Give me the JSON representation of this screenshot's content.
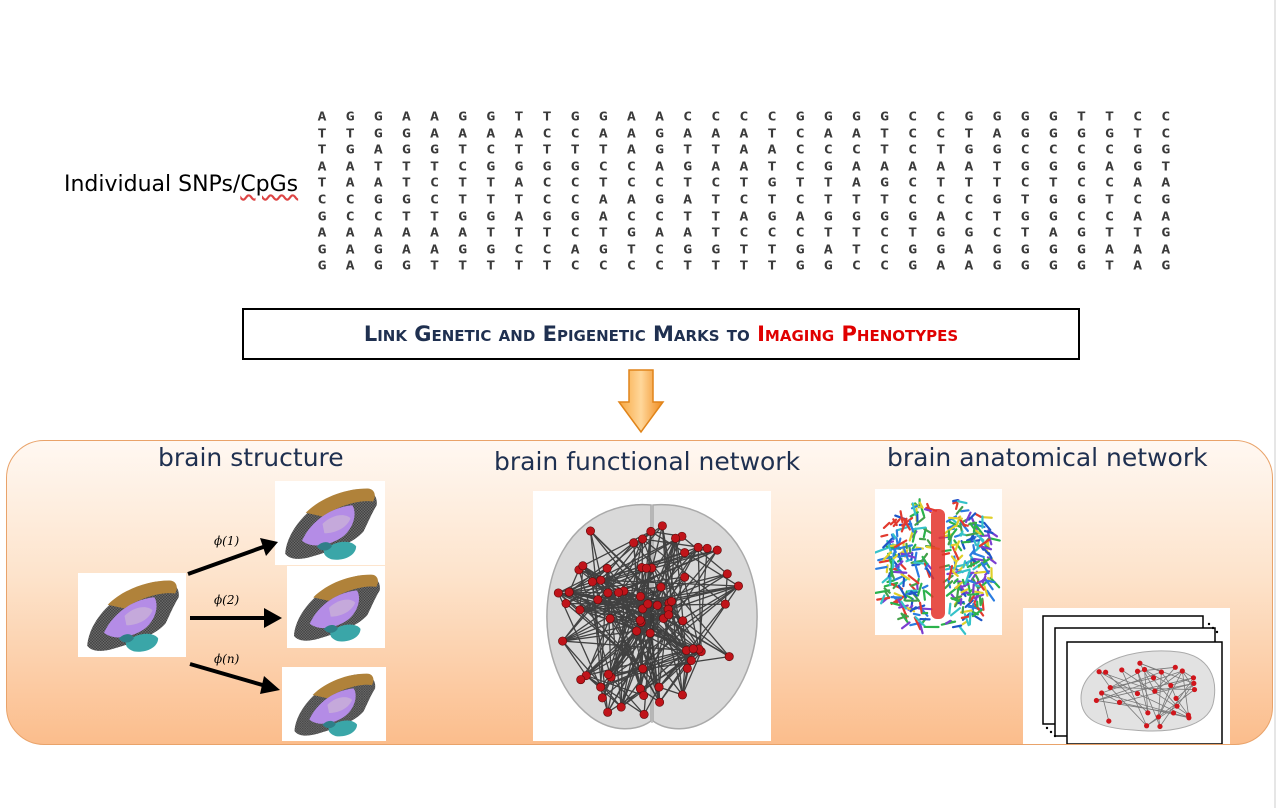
{
  "snp_label": {
    "main": "Individual SNPs/",
    "underlined": "CpGs"
  },
  "dna_rows": [
    "AGGAAGGTTGGAACCCCGGGGCCGGGGTTCC",
    "TTGGAAAACCAAGAAATCAATCCTAGGGGTC",
    "TGAGGTCTTTTAGTTAACCCTCTGGCCCCGG",
    "AATTTCGGGGCCAGAATCGAAAAATGGGAGT",
    "TAATCTTACCTCCTCTGTTAGCTTTCTCCAA",
    "CCGGCTTTCCAAGATCTCTTTCCCGTGGTCG",
    "GCCTTGGAGGACCTTAGAGGGGACTGGCCAA",
    "AAAAAATTTCTGAATCCCTTCTGGCTAGTTG",
    "GAGAAGGCCAGTCGGTTGATCGGAGGGGAAA",
    "GAGGTTTTTCCCCTTTTGGCCGAAGGGGTAG"
  ],
  "link_box": {
    "part1": "Link Genetic and Epigenetic Marks to ",
    "part2": "Imaging Phenotypes"
  },
  "panels": {
    "structure_title": "brain structure",
    "functional_title": "brain functional network",
    "anatomical_title": "brain anatomical network"
  },
  "phi_labels": [
    "ϕ(1)",
    "ϕ(2)",
    "ϕ(n)"
  ],
  "colors": {
    "title_navy": "#1f3050",
    "highlight_red": "#e00000",
    "arrow_orange": "#f7941d",
    "panel_top": "#fff8f2",
    "panel_bottom": "#fbbd8c"
  },
  "icons": [
    "down-arrow-icon",
    "transform-arrow-icon"
  ]
}
